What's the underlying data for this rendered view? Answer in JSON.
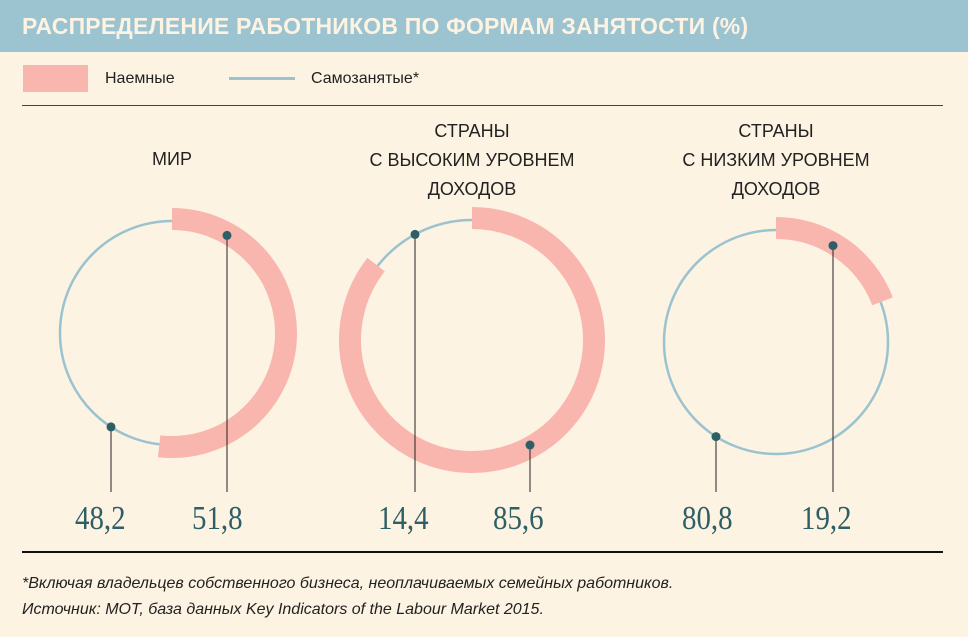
{
  "header": {
    "title": "РАСПРЕДЕЛЕНИЕ РАБОТНИКОВ ПО ФОРМАМ ЗАНЯТОСТИ (%)"
  },
  "legend": {
    "employed": "Наемные",
    "self_employed": "Самозанятые*"
  },
  "colors": {
    "employed": "#f8b6ae",
    "self_employed": "#9bc3cf",
    "values": "#2e5f66",
    "header": "#9bc3d0"
  },
  "chart_data": {
    "type": "pie",
    "title": "РАСПРЕДЕЛЕНИЕ РАБОТНИКОВ ПО ФОРМАМ ЗАНЯТОСТИ (%)",
    "series_names": [
      "Наемные",
      "Самозанятые*"
    ],
    "charts": [
      {
        "title": "МИР",
        "employed": 51.8,
        "self_employed": 48.2,
        "employed_label": "51,8",
        "self_employed_label": "48,2"
      },
      {
        "title": "СТРАНЫ\nС ВЫСОКИМ УРОВНЕМ\nДОХОДОВ",
        "employed": 85.6,
        "self_employed": 14.4,
        "employed_label": "85,6",
        "self_employed_label": "14,4"
      },
      {
        "title": "СТРАНЫ\nС  НИЗКИМ  УРОВНЕМ\nДОХОДОВ",
        "employed": 19.2,
        "self_employed": 80.8,
        "employed_label": "19,2",
        "self_employed_label": "80,8"
      }
    ]
  },
  "footnote": "*Включая владельцев собственного бизнеса, неоплачиваемых семейных работников.",
  "source": "Источник: МОТ, база данных Key Indicators of the Labour Market 2015."
}
